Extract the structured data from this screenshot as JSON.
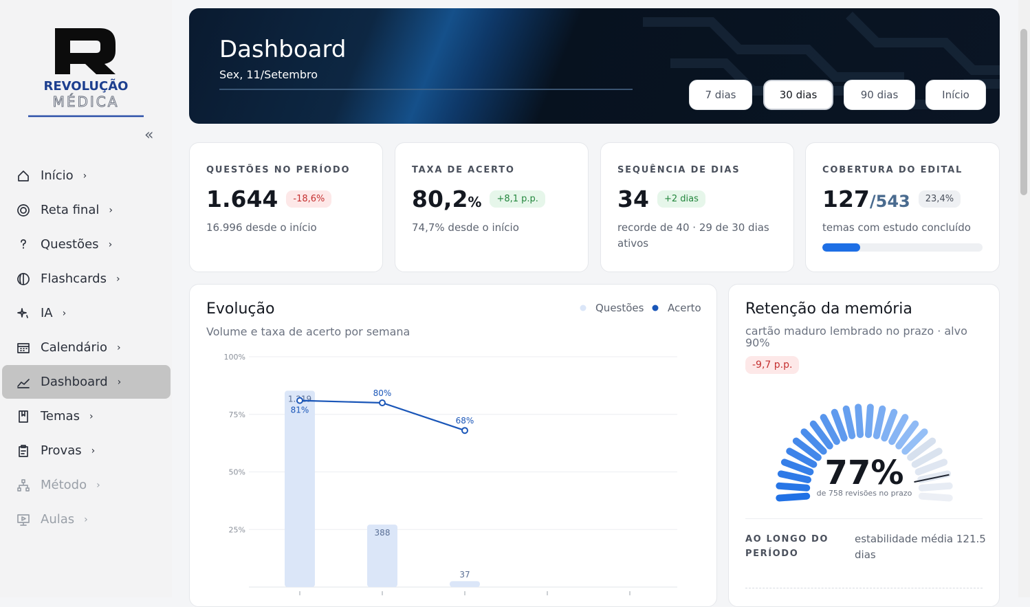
{
  "sidebar": {
    "logo": {
      "line1": "REVOLUÇÃO",
      "line2": "MÉDICA"
    },
    "collapse": "«",
    "nav": [
      {
        "label": "Início"
      },
      {
        "label": "Reta final"
      },
      {
        "label": "Questões"
      },
      {
        "label": "Flashcards"
      },
      {
        "label": "IA"
      },
      {
        "label": "Calendário"
      },
      {
        "label": "Dashboard",
        "active": true
      },
      {
        "label": "Temas"
      },
      {
        "label": "Provas"
      },
      {
        "label": "Método",
        "disabled": true
      },
      {
        "label": "Aulas",
        "disabled": true
      }
    ]
  },
  "header": {
    "title": "Dashboard",
    "date": "Sex, 11/Setembro",
    "ranges": [
      "7 dias",
      "30 dias",
      "90 dias",
      "Início"
    ],
    "active_range": 1
  },
  "stats": [
    {
      "label": "QUESTÕES NO PERÍODO",
      "value": "1.644",
      "badge": "-18,6%",
      "trend": "down",
      "sub": "16.996 desde o início"
    },
    {
      "label": "TAXA DE ACERTO",
      "value": "80,2",
      "unit": "%",
      "badge": "+8,1 p.p.",
      "trend": "up",
      "sub": "74,7% desde o início"
    },
    {
      "label": "SEQUÊNCIA DE DIAS",
      "value": "34",
      "badge": "+2 dias",
      "trend": "up",
      "sub": "recorde de 40 · 29 de 30 dias ativos"
    },
    {
      "label": "COBERTURA DO EDITAL",
      "value": "127",
      "unit": "/543",
      "progress": {
        "value": 23.4,
        "label": "23,4%"
      },
      "trend": "neutral",
      "sub": "temas com estudo concluído"
    }
  ],
  "chart_data": {
    "type": "bar_line",
    "title": "Evolução",
    "subtitle": "Volume e taxa de acerto por semana",
    "categories": [
      null,
      null,
      null,
      null,
      null
    ],
    "series": [
      {
        "name": "Questões",
        "type": "bar",
        "color": "#dbe6f8",
        "axis": "y2",
        "values": [
          1219,
          388,
          37,
          null,
          null
        ],
        "value_labels": [
          "1.219",
          "388",
          "37",
          null,
          null
        ]
      },
      {
        "name": "Acerto",
        "type": "line",
        "color": "#1a56b8",
        "values": [
          81,
          80,
          68,
          null,
          null
        ],
        "value_labels": [
          "81%",
          "80%",
          "68%",
          null,
          null
        ]
      }
    ],
    "ylim": [
      0,
      100
    ],
    "yticks": [
      {
        "value": 25,
        "label": "25%"
      },
      {
        "value": 50,
        "label": "50%"
      },
      {
        "value": 75,
        "label": "75%"
      },
      {
        "value": 100,
        "label": "100%"
      }
    ],
    "y2lim": [
      0,
      1430
    ],
    "grid": true
  },
  "retention": {
    "title": "Retenção da memória",
    "subtitle": "cartão maduro lembrado no prazo · alvo 90%",
    "badge": "-9,7 p.p.",
    "gauge": {
      "value": 77,
      "label": "77%",
      "caption": "de 758 revisões no prazo",
      "target": 90
    },
    "period_label": "AO LONGO DO PERÍODO",
    "stability": "estabilidade média 121.5 dias"
  }
}
